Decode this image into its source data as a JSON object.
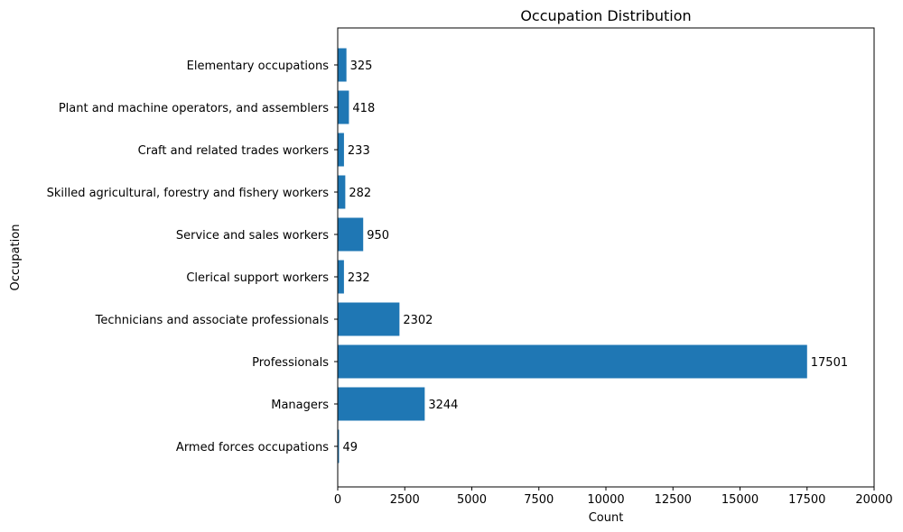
{
  "chart_data": {
    "type": "bar",
    "orientation": "horizontal",
    "title": "Occupation Distribution",
    "xlabel": "Count",
    "ylabel": "Occupation",
    "xlim": [
      0,
      20000
    ],
    "xticks": [
      0,
      2500,
      5000,
      7500,
      10000,
      12500,
      15000,
      17500,
      20000
    ],
    "grid": false,
    "legend": "none",
    "bar_color": "#1f77b4",
    "categories": [
      "Armed forces occupations",
      "Managers",
      "Professionals",
      "Technicians and associate professionals",
      "Clerical support workers",
      "Service and sales workers",
      "Skilled agricultural, forestry and fishery workers",
      "Craft and related trades workers",
      "Plant and machine operators, and assemblers",
      "Elementary occupations"
    ],
    "values": [
      49,
      3244,
      17501,
      2302,
      232,
      950,
      282,
      233,
      418,
      325
    ]
  }
}
